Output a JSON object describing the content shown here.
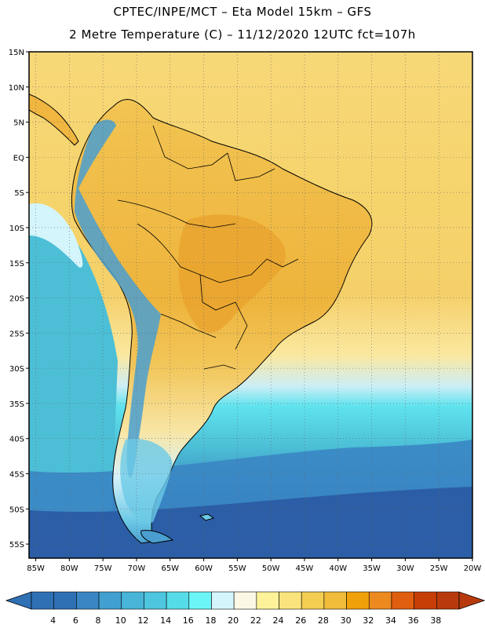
{
  "title": {
    "line1": "CPTEC/INPE/MCT  –   Eta Model 15km  –  GFS",
    "line2": "2 Metre Temperature (C) – 11/12/2020 12UTC fct=107h"
  },
  "map": {
    "lat_labels": [
      "15N",
      "10N",
      "5N",
      "EQ",
      "5S",
      "10S",
      "15S",
      "20S",
      "25S",
      "30S",
      "35S",
      "40S",
      "45S",
      "50S",
      "55S"
    ],
    "lon_labels": [
      "85W",
      "80W",
      "75W",
      "70W",
      "65W",
      "60W",
      "55W",
      "50W",
      "45W",
      "40W",
      "35W",
      "30W",
      "25W",
      "20W"
    ],
    "lat_range": [
      15,
      -57
    ],
    "lon_range": [
      -86,
      -20
    ]
  },
  "colorbar": {
    "labels": [
      "4",
      "6",
      "8",
      "10",
      "12",
      "14",
      "16",
      "18",
      "20",
      "22",
      "24",
      "26",
      "28",
      "30",
      "32",
      "34",
      "36",
      "38"
    ],
    "colors": [
      "#2f6fb4",
      "#2f6fb4",
      "#3a86c4",
      "#41a0d0",
      "#48b4d8",
      "#4ec6e0",
      "#56dce8",
      "#6cf5f7",
      "#d4f5fb",
      "#fdf8e6",
      "#fdf29a",
      "#fae37c",
      "#f4ce53",
      "#f0bc3a",
      "#f0a10a",
      "#ec8a20",
      "#e05e0f",
      "#c63d05",
      "#b83a0c"
    ]
  },
  "palette": {
    "ocean_cold": "#2b5ea6",
    "ocean_mid": "#4cbfd6",
    "ocean_cool": "#5fe3ee",
    "ocean_warm": "#f7d878",
    "land_warm": "#f2c04a",
    "land_hot": "#e8a12c",
    "andes_cold": "#4a9fd0"
  }
}
